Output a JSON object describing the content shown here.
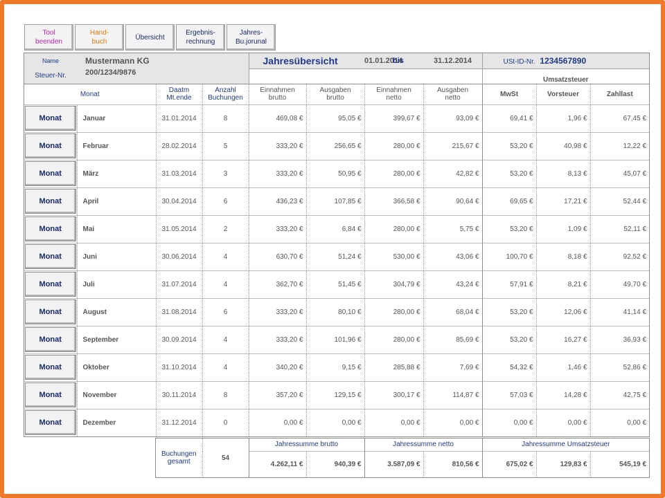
{
  "toolbar": [
    {
      "label": "Tool\nbeenden"
    },
    {
      "label": "Hand-\nbuch"
    },
    {
      "label": "Übersicht"
    },
    {
      "label": "Ergebnis-\nrechnung"
    },
    {
      "label": "Jahres-\nBu.jorunal"
    }
  ],
  "header": {
    "name_label": "Name",
    "name_value": "Mustermann KG",
    "tax_label": "Steuer-Nr.",
    "tax_value": "200/1234/9876",
    "title": "Jahresübersicht",
    "date_from": "01.01.2014",
    "bis": "bis",
    "date_to": "31.12.2014",
    "ust_label": "USt-ID-Nr.",
    "ust_value": "1234567890",
    "umsatzsteuer": "Umsatzsteuer"
  },
  "columns": {
    "monat": "Monat",
    "datum": "Daatm\nMt.ende",
    "anzahl": "Anzahl\nBuchungen",
    "ein_brutto": "Einnahmen\nbrutto",
    "aus_brutto": "Ausgaben\nbrutto",
    "ein_netto": "Einnahmen\nnetto",
    "aus_netto": "Ausgaben\nnetto",
    "mwst": "MwSt",
    "vorsteuer": "Vorsteuer",
    "zahllast": "Zahllast"
  },
  "button_label": "Monat",
  "rows": [
    {
      "month": "Januar",
      "date": "31.01.2014",
      "count": "8",
      "ein_b": "469,08 €",
      "aus_b": "95,05 €",
      "ein_n": "399,67 €",
      "aus_n": "93,09 €",
      "mwst": "69,41 €",
      "vst": "1,96 €",
      "zl": "67,45 €"
    },
    {
      "month": "Februar",
      "date": "28.02.2014",
      "count": "5",
      "ein_b": "333,20 €",
      "aus_b": "256,65 €",
      "ein_n": "280,00 €",
      "aus_n": "215,67 €",
      "mwst": "53,20 €",
      "vst": "40,98 €",
      "zl": "12,22 €"
    },
    {
      "month": "März",
      "date": "31.03.2014",
      "count": "3",
      "ein_b": "333,20 €",
      "aus_b": "50,95 €",
      "ein_n": "280,00 €",
      "aus_n": "42,82 €",
      "mwst": "53,20 €",
      "vst": "8,13 €",
      "zl": "45,07 €"
    },
    {
      "month": "April",
      "date": "30.04.2014",
      "count": "6",
      "ein_b": "436,23 €",
      "aus_b": "107,85 €",
      "ein_n": "366,58 €",
      "aus_n": "90,64 €",
      "mwst": "69,65 €",
      "vst": "17,21 €",
      "zl": "52,44 €"
    },
    {
      "month": "Mai",
      "date": "31.05.2014",
      "count": "2",
      "ein_b": "333,20 €",
      "aus_b": "6,84 €",
      "ein_n": "280,00 €",
      "aus_n": "5,75 €",
      "mwst": "53,20 €",
      "vst": "1,09 €",
      "zl": "52,11 €"
    },
    {
      "month": "Juni",
      "date": "30.06.2014",
      "count": "4",
      "ein_b": "630,70 €",
      "aus_b": "51,24 €",
      "ein_n": "530,00 €",
      "aus_n": "43,06 €",
      "mwst": "100,70 €",
      "vst": "8,18 €",
      "zl": "92,52 €"
    },
    {
      "month": "Juli",
      "date": "31.07.2014",
      "count": "4",
      "ein_b": "362,70 €",
      "aus_b": "51,45 €",
      "ein_n": "304,79 €",
      "aus_n": "43,24 €",
      "mwst": "57,91 €",
      "vst": "8,21 €",
      "zl": "49,70 €"
    },
    {
      "month": "August",
      "date": "31.08.2014",
      "count": "6",
      "ein_b": "333,20 €",
      "aus_b": "80,10 €",
      "ein_n": "280,00 €",
      "aus_n": "68,04 €",
      "mwst": "53,20 €",
      "vst": "12,06 €",
      "zl": "41,14 €"
    },
    {
      "month": "September",
      "date": "30.09.2014",
      "count": "4",
      "ein_b": "333,20 €",
      "aus_b": "101,96 €",
      "ein_n": "280,00 €",
      "aus_n": "85,69 €",
      "mwst": "53,20 €",
      "vst": "16,27 €",
      "zl": "36,93 €"
    },
    {
      "month": "Oktober",
      "date": "31.10.2014",
      "count": "4",
      "ein_b": "340,20 €",
      "aus_b": "9,15 €",
      "ein_n": "285,88 €",
      "aus_n": "7,69 €",
      "mwst": "54,32 €",
      "vst": "1,46 €",
      "zl": "52,86 €"
    },
    {
      "month": "November",
      "date": "30.11.2014",
      "count": "8",
      "ein_b": "357,20 €",
      "aus_b": "129,15 €",
      "ein_n": "300,17 €",
      "aus_n": "114,87 €",
      "mwst": "57,03 €",
      "vst": "14,28 €",
      "zl": "42,75 €"
    },
    {
      "month": "Dezember",
      "date": "31.12.2014",
      "count": "0",
      "ein_b": "0,00 €",
      "aus_b": "0,00 €",
      "ein_n": "0,00 €",
      "aus_n": "0,00 €",
      "mwst": "0,00 €",
      "vst": "0,00 €",
      "zl": "0,00 €"
    }
  ],
  "summary": {
    "buchungen_label": "Buchungen\ngesamt",
    "buchungen_total": "54",
    "h_brutto": "Jahressumme brutto",
    "h_netto": "Jahressumme netto",
    "h_ust": "Jahressumme Umsatzsteuer",
    "ein_b": "4.262,11 €",
    "aus_b": "940,39 €",
    "ein_n": "3.587,09 €",
    "aus_n": "810,56 €",
    "mwst": "675,02 €",
    "vst": "129,83 €",
    "zl": "545,19 €"
  }
}
